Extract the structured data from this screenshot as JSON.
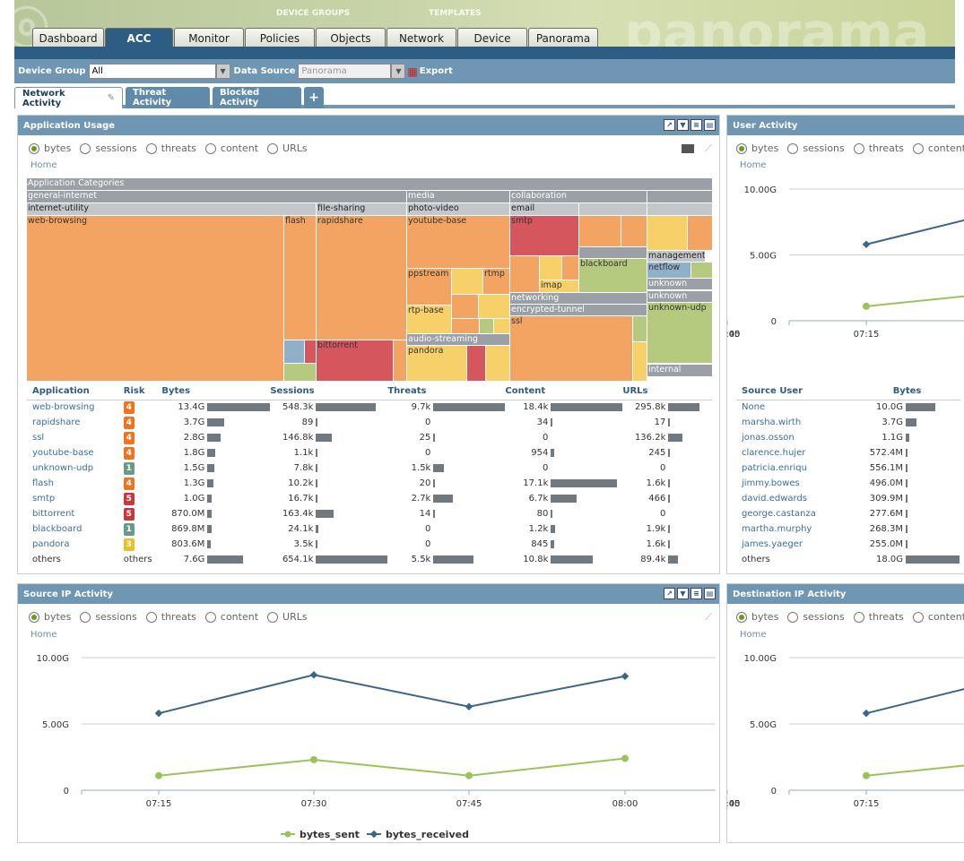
{
  "banner": {
    "device_groups": "DEVICE GROUPS",
    "templates": "TEMPLATES",
    "brand": "panorama"
  },
  "tabs": [
    {
      "label": "Dashboard",
      "active": false
    },
    {
      "label": "ACC",
      "active": true
    },
    {
      "label": "Monitor",
      "active": false
    },
    {
      "label": "Policies",
      "active": false
    },
    {
      "label": "Objects",
      "active": false
    },
    {
      "label": "Network",
      "active": false
    },
    {
      "label": "Device",
      "active": false
    },
    {
      "label": "Panorama",
      "active": false
    }
  ],
  "toolbar": {
    "device_group_label": "Device Group",
    "device_group_value": "All",
    "data_source_label": "Data Source",
    "data_source_value": "Panorama",
    "export_label": "Export"
  },
  "subtabs": [
    "Network Activity",
    "Threat Activity",
    "Blocked Activity",
    "+"
  ],
  "radio_options": [
    "bytes",
    "sessions",
    "threats",
    "content",
    "URLs"
  ],
  "home_label": "Home",
  "app_usage": {
    "title": "Application Usage",
    "treemap": {
      "root": "Application Categories",
      "categories": [
        "general-internet",
        "media",
        "collaboration"
      ],
      "subcategories": [
        "internet-utility",
        "file-sharing",
        "photo-video",
        "email"
      ],
      "apps": [
        "web-browsing",
        "flash",
        "rapidshare",
        "youtube-base",
        "smtp",
        "blackboard",
        "management",
        "netflow",
        "unknown",
        "ppstream",
        "rtmp",
        "imap",
        "networking",
        "encrypted-tunnel",
        "unknown",
        "unknown-udp",
        "ssl",
        "rtp-base",
        "audio-streaming",
        "pandora",
        "bittorrent",
        "internal"
      ]
    },
    "columns": [
      "Application",
      "Risk",
      "Bytes",
      "Sessions",
      "Threats",
      "Content",
      "URLs"
    ],
    "rows": [
      {
        "app": "web-browsing",
        "risk": "4",
        "bytes": "13.4G",
        "sessions": "548.3k",
        "threats": "9.7k",
        "content": "18.4k",
        "urls": "295.8k"
      },
      {
        "app": "rapidshare",
        "risk": "4",
        "bytes": "3.7G",
        "sessions": "89",
        "threats": "0",
        "content": "34",
        "urls": "17"
      },
      {
        "app": "ssl",
        "risk": "4",
        "bytes": "2.8G",
        "sessions": "146.8k",
        "threats": "25",
        "content": "0",
        "urls": "136.2k"
      },
      {
        "app": "youtube-base",
        "risk": "4",
        "bytes": "1.8G",
        "sessions": "1.1k",
        "threats": "0",
        "content": "954",
        "urls": "245"
      },
      {
        "app": "unknown-udp",
        "risk": "1",
        "bytes": "1.5G",
        "sessions": "7.8k",
        "threats": "1.5k",
        "content": "0",
        "urls": "0"
      },
      {
        "app": "flash",
        "risk": "4",
        "bytes": "1.3G",
        "sessions": "10.2k",
        "threats": "20",
        "content": "17.1k",
        "urls": "1.6k"
      },
      {
        "app": "smtp",
        "risk": "5",
        "bytes": "1.0G",
        "sessions": "16.7k",
        "threats": "2.7k",
        "content": "6.7k",
        "urls": "466"
      },
      {
        "app": "bittorrent",
        "risk": "5",
        "bytes": "870.0M",
        "sessions": "163.4k",
        "threats": "14",
        "content": "80",
        "urls": "0"
      },
      {
        "app": "blackboard",
        "risk": "1",
        "bytes": "869.8M",
        "sessions": "24.1k",
        "threats": "0",
        "content": "1.2k",
        "urls": "1.9k"
      },
      {
        "app": "pandora",
        "risk": "3",
        "bytes": "803.6M",
        "sessions": "3.5k",
        "threats": "0",
        "content": "845",
        "urls": "1.6k"
      },
      {
        "app": "others",
        "risk": "others",
        "bytes": "7.6G",
        "sessions": "654.1k",
        "threats": "5.5k",
        "content": "10.8k",
        "urls": "89.4k"
      }
    ]
  },
  "user_activity": {
    "title": "User Activity",
    "radio_options": [
      "bytes",
      "sessions",
      "threats",
      "content"
    ],
    "y_ticks": [
      "10.00G",
      "5.00G",
      "0"
    ],
    "x_ticks": [
      "07:15"
    ],
    "columns": [
      "Source User",
      "Bytes"
    ],
    "rows": [
      {
        "user": "None",
        "bytes": "10.0G"
      },
      {
        "user": "marsha.wirth",
        "bytes": "3.7G"
      },
      {
        "user": "jonas.osson",
        "bytes": "1.1G"
      },
      {
        "user": "clarence.hujer",
        "bytes": "572.4M"
      },
      {
        "user": "patricia.enriqu",
        "bytes": "556.1M"
      },
      {
        "user": "jimmy.bowes",
        "bytes": "496.0M"
      },
      {
        "user": "david.edwards",
        "bytes": "309.9M"
      },
      {
        "user": "george.castanza",
        "bytes": "277.6M"
      },
      {
        "user": "martha.murphy",
        "bytes": "268.3M"
      },
      {
        "user": "james.yaeger",
        "bytes": "255.0M"
      },
      {
        "user": "others",
        "bytes": "18.0G"
      }
    ]
  },
  "source_ip": {
    "title": "Source IP Activity"
  },
  "dest_ip": {
    "title": "Destination IP Activity",
    "radio_options": [
      "bytes",
      "sessions",
      "threats",
      "content"
    ]
  },
  "chart_data": [
    {
      "type": "line",
      "x": [
        "07:15",
        "07:30",
        "07:45",
        "08:00"
      ],
      "ylim": [
        0,
        10
      ],
      "y_ticks": [
        "10.00G",
        "5.00G",
        "0"
      ],
      "series": [
        {
          "name": "bytes_sent",
          "values": [
            1.1,
            2.3,
            1.1,
            2.4
          ],
          "color": "#9bc35a"
        },
        {
          "name": "bytes_received",
          "values": [
            5.8,
            8.7,
            6.3,
            8.6
          ],
          "color": "#3d6585"
        }
      ]
    }
  ],
  "colors": {
    "accent": "#2d5d82",
    "header": "#6f96b3",
    "orange": "#f4a462",
    "red": "#d6565e",
    "yellow": "#f8d06a",
    "green": "#b5c97f",
    "blue": "#8fb0c8"
  }
}
